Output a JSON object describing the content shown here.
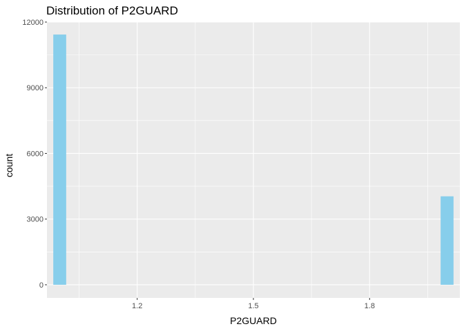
{
  "chart_data": {
    "type": "bar",
    "title": "Distribution of P2GUARD",
    "xlabel": "P2GUARD",
    "ylabel": "count",
    "xlim": [
      1.0,
      2.0
    ],
    "ylim": [
      0,
      12000
    ],
    "x_ticks": [
      "1.2",
      "1.5",
      "1.8"
    ],
    "y_ticks": [
      "0",
      "3000",
      "6000",
      "9000",
      "12000"
    ],
    "bin_width": 0.0333,
    "bins": [
      {
        "x": 1.0,
        "count": 11430
      },
      {
        "x": 2.0,
        "count": 4040
      }
    ],
    "colors": {
      "bar_fill": "#87CEEB",
      "panel_background": "#EBEBEB",
      "grid": "#FFFFFF"
    },
    "grid": true
  }
}
